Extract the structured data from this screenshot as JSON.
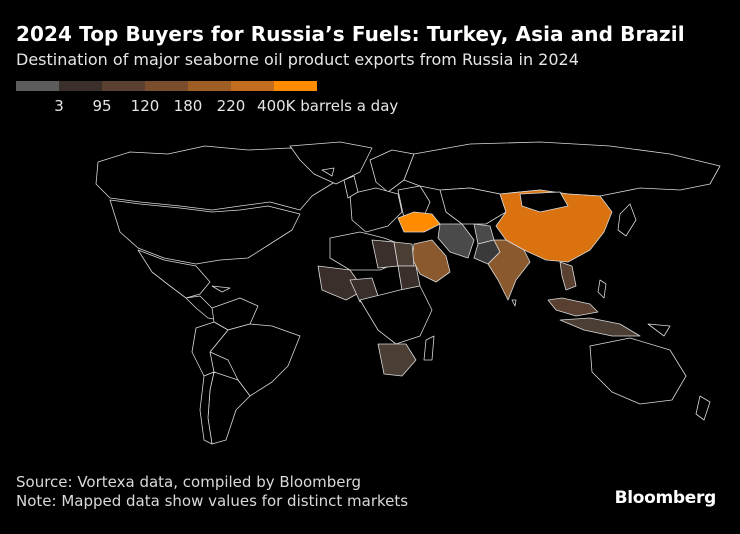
{
  "title": "2024 Top Buyers for Russia’s Fuels: Turkey, Asia and Brazil",
  "subtitle": "Destination of major seaborne oil product exports from Russia in 2024",
  "legend": {
    "colors": [
      "#5c5c5c",
      "#3a2f2a",
      "#5a4030",
      "#7a4e2c",
      "#9e5e26",
      "#c26d1f",
      "#ff8c00"
    ],
    "labels": [
      "3",
      "95",
      "120",
      "180",
      "220",
      "400K barrels a day"
    ]
  },
  "source": "Source: Vortexa data, compiled by Bloomberg",
  "note": "Note: Mapped data show values for distinct markets",
  "brand": "Bloomberg",
  "map": {
    "no_data_color": "#000000",
    "colors": {
      "turkey": "#ff8c00",
      "china": "#d9720f",
      "brazil": "#b86a1c",
      "india": "#8a5a2e",
      "saudi-arabia": "#8a5a2e",
      "argentina": "#4a3e35",
      "egypt": "#4a3e35",
      "iran": "#4a4a4a",
      "afghanistan": "#4a4a4a",
      "pakistan": "#3a3a3a",
      "indonesia": "#4a3e35",
      "malaysia": "#5a4030",
      "vietnam": "#5a4030",
      "south-africa": "#4a3e35",
      "nigeria": "#3a2f2a",
      "libya": "#3a2f2a",
      "sudan": "#3a2f2a",
      "west-africa-cluster": "#3a2f2a"
    }
  }
}
